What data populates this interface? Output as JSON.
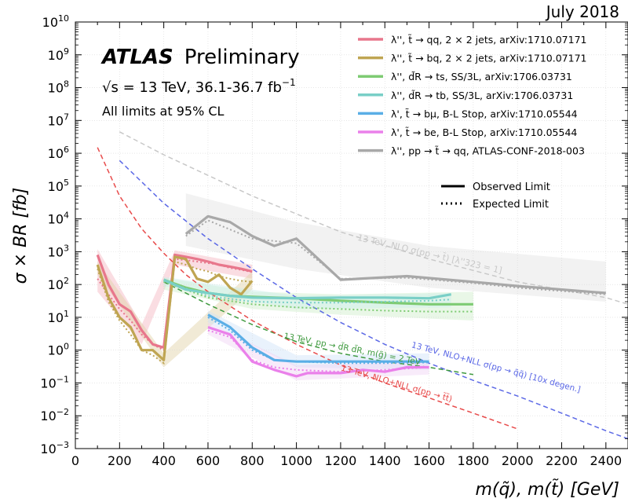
{
  "header": {
    "date": "July 2018"
  },
  "brand": {
    "experiment": "ATLAS",
    "status": "Preliminary"
  },
  "info": {
    "energy_prefix": "√s = 13 TeV, 36.1-36.7 fb",
    "energy_exp": "−1",
    "cl_note": "All limits at 95% CL"
  },
  "style_legend": {
    "observed": "Observed Limit",
    "expected": "Expected Limit"
  },
  "chart_data": {
    "type": "line",
    "title": "",
    "xlabel": "m(q̃), m(t̃) [GeV]",
    "ylabel": "σ × BR [fb]",
    "xlim": [
      0,
      2500
    ],
    "ylim": [
      0.001,
      10000000000
    ],
    "yscale": "log",
    "x_ticks": [
      "0",
      "200",
      "400",
      "600",
      "800",
      "1000",
      "1200",
      "1400",
      "1600",
      "1800",
      "2000",
      "2200",
      "2400"
    ],
    "y_ticks": [
      {
        "base": "10",
        "exp": "−3"
      },
      {
        "base": "10",
        "exp": "−2"
      },
      {
        "base": "10",
        "exp": "−1"
      },
      {
        "base": "10",
        "exp": "0"
      },
      {
        "base": "10",
        "exp": "1"
      },
      {
        "base": "10",
        "exp": "2"
      },
      {
        "base": "10",
        "exp": "3"
      },
      {
        "base": "10",
        "exp": "4"
      },
      {
        "base": "10",
        "exp": "5"
      },
      {
        "base": "10",
        "exp": "6"
      },
      {
        "base": "10",
        "exp": "7"
      },
      {
        "base": "10",
        "exp": "8"
      },
      {
        "base": "10",
        "exp": "9"
      },
      {
        "base": "10",
        "exp": "10"
      }
    ],
    "grid": true,
    "legend_position": "top-right",
    "series": [
      {
        "name": "λ'', t̃ → qq, 2 × 2 jets, arXiv:1710.07171",
        "color": "#e8778c",
        "observed": [
          [
            100,
            800
          ],
          [
            150,
            100
          ],
          [
            200,
            25
          ],
          [
            250,
            15
          ],
          [
            300,
            4
          ],
          [
            350,
            1.5
          ],
          [
            400,
            1.2
          ],
          [
            450,
            800
          ],
          [
            500,
            700
          ],
          [
            550,
            600
          ],
          [
            600,
            500
          ],
          [
            650,
            400
          ],
          [
            700,
            350
          ],
          [
            750,
            300
          ],
          [
            800,
            250
          ]
        ],
        "expected": [
          [
            100,
            150
          ],
          [
            150,
            50
          ],
          [
            200,
            18
          ],
          [
            250,
            8
          ],
          [
            300,
            3
          ],
          [
            350,
            1.5
          ],
          [
            400,
            1
          ],
          [
            450,
            600
          ],
          [
            500,
            550
          ],
          [
            550,
            500
          ],
          [
            600,
            450
          ],
          [
            650,
            400
          ],
          [
            700,
            320
          ],
          [
            750,
            280
          ],
          [
            800,
            240
          ]
        ],
        "band": {
          "color": "#f3b3be",
          "upper": [
            [
              100,
              1200
            ],
            [
              300,
              6
            ],
            [
              450,
              1100
            ],
            [
              800,
              400
            ]
          ],
          "lower": [
            [
              100,
              60
            ],
            [
              300,
              1.5
            ],
            [
              450,
              400
            ],
            [
              800,
              150
            ]
          ]
        }
      },
      {
        "name": "λ'', t̃ → bq, 2 × 2 jets, arXiv:1710.07171",
        "color": "#bfa552",
        "observed": [
          [
            100,
            400
          ],
          [
            150,
            40
          ],
          [
            200,
            10
          ],
          [
            250,
            5
          ],
          [
            300,
            1
          ],
          [
            350,
            1
          ],
          [
            400,
            0.5
          ],
          [
            450,
            700
          ],
          [
            500,
            600
          ],
          [
            550,
            150
          ],
          [
            600,
            120
          ],
          [
            650,
            200
          ],
          [
            700,
            80
          ],
          [
            750,
            50
          ],
          [
            800,
            130
          ]
        ],
        "expected": [
          [
            100,
            300
          ],
          [
            150,
            30
          ],
          [
            200,
            8
          ],
          [
            250,
            3
          ],
          [
            300,
            1
          ],
          [
            350,
            0.7
          ],
          [
            400,
            0.4
          ],
          [
            450,
            500
          ],
          [
            500,
            400
          ],
          [
            550,
            300
          ],
          [
            600,
            250
          ],
          [
            650,
            180
          ],
          [
            700,
            150
          ],
          [
            750,
            130
          ],
          [
            800,
            120
          ]
        ],
        "band": {
          "color": "#e0d0a3",
          "upper": [
            [
              100,
              500
            ],
            [
              400,
              0.8
            ],
            [
              800,
              250
            ]
          ],
          "lower": [
            [
              100,
              200
            ],
            [
              400,
              0.3
            ],
            [
              800,
              70
            ]
          ]
        }
      },
      {
        "name": "λ'', d̃R → ts, SS/3L, arXiv:1706.03731",
        "color": "#7ecb73",
        "observed": [
          [
            400,
            140
          ],
          [
            500,
            80
          ],
          [
            600,
            55
          ],
          [
            700,
            45
          ],
          [
            800,
            42
          ],
          [
            900,
            40
          ],
          [
            1000,
            38
          ],
          [
            1200,
            32
          ],
          [
            1400,
            28
          ],
          [
            1600,
            25
          ],
          [
            1800,
            25
          ]
        ],
        "expected": [
          [
            400,
            120
          ],
          [
            600,
            40
          ],
          [
            800,
            25
          ],
          [
            1000,
            20
          ],
          [
            1200,
            18
          ],
          [
            1400,
            16
          ],
          [
            1600,
            15
          ],
          [
            1800,
            15
          ]
        ],
        "band": {
          "color": "#cfeec9",
          "upper": [
            [
              400,
              160
            ],
            [
              800,
              60
            ],
            [
              1200,
              50
            ],
            [
              1800,
              60
            ]
          ],
          "lower": [
            [
              400,
              70
            ],
            [
              800,
              18
            ],
            [
              1200,
              12
            ],
            [
              1800,
              8
            ]
          ]
        }
      },
      {
        "name": "λ'', d̃R → tb, SS/3L, arXiv:1706.03731",
        "color": "#79cfc7",
        "observed": [
          [
            400,
            140
          ],
          [
            500,
            70
          ],
          [
            600,
            55
          ],
          [
            700,
            45
          ],
          [
            800,
            40
          ],
          [
            1000,
            38
          ],
          [
            1200,
            40
          ],
          [
            1400,
            40
          ],
          [
            1600,
            38
          ],
          [
            1700,
            50
          ]
        ],
        "expected": [
          [
            400,
            130
          ],
          [
            600,
            45
          ],
          [
            800,
            30
          ],
          [
            1000,
            28
          ],
          [
            1200,
            28
          ],
          [
            1400,
            30
          ],
          [
            1600,
            32
          ],
          [
            1700,
            35
          ]
        ],
        "band": {
          "color": "#cdeeea",
          "upper": [
            [
              400,
              170
            ],
            [
              1000,
              45
            ],
            [
              1700,
              55
            ]
          ],
          "lower": [
            [
              400,
              90
            ],
            [
              1000,
              18
            ],
            [
              1700,
              20
            ]
          ]
        }
      },
      {
        "name": "λ', t̃ → bμ, B-L Stop, arXiv:1710.05544",
        "color": "#5aaee6",
        "observed": [
          [
            600,
            12
          ],
          [
            700,
            5
          ],
          [
            800,
            1.2
          ],
          [
            900,
            0.5
          ],
          [
            1000,
            0.45
          ],
          [
            1100,
            0.45
          ],
          [
            1200,
            0.45
          ],
          [
            1300,
            0.45
          ],
          [
            1400,
            0.45
          ],
          [
            1500,
            0.45
          ],
          [
            1600,
            0.45
          ]
        ],
        "expected": [
          [
            600,
            10
          ],
          [
            700,
            4
          ],
          [
            800,
            1
          ],
          [
            900,
            0.5
          ],
          [
            1000,
            0.45
          ],
          [
            1200,
            0.4
          ],
          [
            1400,
            0.4
          ],
          [
            1600,
            0.42
          ]
        ],
        "band": {
          "color": "#cfe3f8",
          "upper": [
            [
              600,
              16
            ],
            [
              1000,
              0.7
            ],
            [
              1600,
              0.8
            ]
          ],
          "lower": [
            [
              600,
              7
            ],
            [
              1000,
              0.3
            ],
            [
              1600,
              0.25
            ]
          ]
        }
      },
      {
        "name": "λ', t̃ → be, B-L Stop, arXiv:1710.05544",
        "color": "#ea80ea",
        "observed": [
          [
            600,
            5
          ],
          [
            700,
            3
          ],
          [
            800,
            0.45
          ],
          [
            900,
            0.25
          ],
          [
            1000,
            0.16
          ],
          [
            1050,
            0.2
          ],
          [
            1100,
            0.2
          ],
          [
            1200,
            0.2
          ],
          [
            1300,
            0.25
          ],
          [
            1400,
            0.22
          ],
          [
            1500,
            0.3
          ],
          [
            1600,
            0.3
          ]
        ],
        "expected": [
          [
            600,
            4
          ],
          [
            700,
            2.5
          ],
          [
            800,
            0.5
          ],
          [
            900,
            0.3
          ],
          [
            1000,
            0.25
          ],
          [
            1200,
            0.22
          ],
          [
            1400,
            0.25
          ],
          [
            1600,
            0.3
          ]
        ],
        "band": {
          "color": "#efd2f5",
          "upper": [
            [
              600,
              7
            ],
            [
              1000,
              0.35
            ],
            [
              1600,
              0.45
            ]
          ],
          "lower": [
            [
              600,
              3
            ],
            [
              1000,
              0.12
            ],
            [
              1600,
              0.18
            ]
          ]
        }
      },
      {
        "name": "λ'', pp → t̃ → qq, ATLAS-CONF-2018-003",
        "color": "#a8a8a8",
        "observed": [
          [
            500,
            3500
          ],
          [
            600,
            12000
          ],
          [
            700,
            8000
          ],
          [
            800,
            3000
          ],
          [
            900,
            1500
          ],
          [
            1000,
            2500
          ],
          [
            1200,
            140
          ],
          [
            1500,
            180
          ],
          [
            1800,
            120
          ],
          [
            2000,
            90
          ],
          [
            2400,
            55
          ]
        ],
        "expected": [
          [
            500,
            3000
          ],
          [
            600,
            9000
          ],
          [
            800,
            2500
          ],
          [
            1000,
            1800
          ],
          [
            1200,
            150
          ],
          [
            1500,
            160
          ],
          [
            1800,
            110
          ],
          [
            2000,
            80
          ],
          [
            2400,
            50
          ]
        ],
        "band": {
          "color": "#e3e3e3",
          "upper": [
            [
              500,
              60000
            ],
            [
              1000,
              8000
            ],
            [
              1600,
              1500
            ],
            [
              2400,
              500
            ]
          ],
          "lower": [
            [
              500,
              1500
            ],
            [
              1000,
              300
            ],
            [
              1600,
              80
            ],
            [
              2400,
              30
            ]
          ]
        }
      }
    ],
    "theory_curves": [
      {
        "label": "13 TeV, NLO σ(pp → t̃) [λ''323 = 1]",
        "color": "#c8c8c8",
        "points": [
          [
            200,
            4500000
          ],
          [
            400,
            900000
          ],
          [
            800,
            50000
          ],
          [
            1200,
            4000
          ],
          [
            1600,
            600
          ],
          [
            2000,
            120
          ],
          [
            2400,
            40
          ],
          [
            2500,
            25
          ]
        ]
      },
      {
        "label": "13 TeV, NLO+NLL σ(pp → q̃q̃) [10x degen.]",
        "color": "#5b68e6",
        "points": [
          [
            200,
            600000
          ],
          [
            400,
            30000
          ],
          [
            600,
            2500
          ],
          [
            800,
            300
          ],
          [
            1000,
            40
          ],
          [
            1200,
            7
          ],
          [
            1400,
            1.5
          ],
          [
            1600,
            0.4
          ],
          [
            1800,
            0.12
          ],
          [
            2000,
            0.04
          ],
          [
            2200,
            0.012
          ],
          [
            2400,
            0.0035
          ],
          [
            2500,
            0.002
          ]
        ]
      },
      {
        "label": "13 TeV, pp → d̃R d̃R, m(g̃) = 2 TeV",
        "color": "#3f9a3f",
        "points": [
          [
            400,
            120
          ],
          [
            600,
            25
          ],
          [
            800,
            6
          ],
          [
            1000,
            1.8
          ],
          [
            1200,
            0.8
          ],
          [
            1400,
            0.45
          ],
          [
            1600,
            0.3
          ],
          [
            1800,
            0.18
          ]
        ]
      },
      {
        "label": "13 TeV, NLO+NLL σ(pp → t̃t̃)",
        "color": "#e84b4b",
        "points": [
          [
            100,
            1500000
          ],
          [
            200,
            50000
          ],
          [
            300,
            5000
          ],
          [
            400,
            900
          ],
          [
            500,
            200
          ],
          [
            600,
            60
          ],
          [
            800,
            8
          ],
          [
            1000,
            1.5
          ],
          [
            1200,
            0.35
          ],
          [
            1400,
            0.1
          ],
          [
            1600,
            0.035
          ],
          [
            1800,
            0.012
          ],
          [
            2000,
            0.004
          ]
        ]
      }
    ]
  }
}
